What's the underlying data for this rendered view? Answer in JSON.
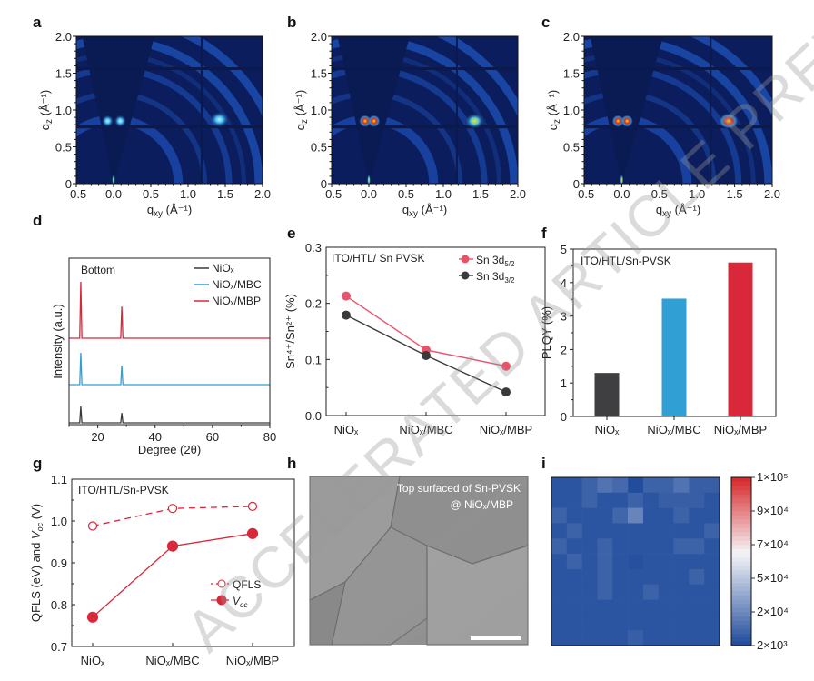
{
  "panel_labels": [
    "a",
    "b",
    "c",
    "d",
    "e",
    "f",
    "g",
    "h",
    "i"
  ],
  "watermark": "ACCELERATED ARTICLE PREVIEW",
  "colors": {
    "NiOx": "#3a3a3a",
    "NiOx_MBC": "#2f9fd4",
    "NiOx_MBP": "#d8283a",
    "giwaxs_bg": "#0b1d5c"
  },
  "chart_data": [
    {
      "panel": "a",
      "type": "heatmap",
      "xlabel": "q",
      "xlabel_sub": "xy",
      "xlabel_unit": " (Å⁻¹)",
      "ylabel": "q",
      "ylabel_sub": "z",
      "ylabel_unit": " (Å⁻¹)",
      "xlim": [
        -0.5,
        2.0
      ],
      "ylim": [
        0,
        2.0
      ],
      "xticks": [
        "-0.5",
        "0.0",
        "0.5",
        "1.0",
        "1.5",
        "2.0"
      ],
      "yticks": [
        "0",
        "0.5",
        "1.0",
        "1.5",
        "2.0"
      ],
      "spots": [
        {
          "qxy": -0.08,
          "qz": 0.85,
          "intensity": 0.55
        },
        {
          "qxy": 0.09,
          "qz": 0.85,
          "intensity": 0.55
        },
        {
          "qxy": 1.42,
          "qz": 0.87,
          "intensity": 0.45
        }
      ]
    },
    {
      "panel": "b",
      "type": "heatmap",
      "xlabel": "q",
      "xlabel_sub": "xy",
      "xlabel_unit": " (Å⁻¹)",
      "ylabel": "q",
      "ylabel_sub": "z",
      "ylabel_unit": " (Å⁻¹)",
      "xlim": [
        -0.5,
        2.0
      ],
      "ylim": [
        0,
        2.0
      ],
      "xticks": [
        "-0.5",
        "0.0",
        "0.5",
        "1.0",
        "1.5",
        "2.0"
      ],
      "yticks": [
        "0",
        "0.5",
        "1.0",
        "1.5",
        "2.0"
      ],
      "spots": [
        {
          "qxy": -0.05,
          "qz": 0.85,
          "intensity": 1.0
        },
        {
          "qxy": 0.07,
          "qz": 0.85,
          "intensity": 1.0
        },
        {
          "qxy": 1.42,
          "qz": 0.85,
          "intensity": 0.75
        }
      ]
    },
    {
      "panel": "c",
      "type": "heatmap",
      "xlabel": "q",
      "xlabel_sub": "xy",
      "xlabel_unit": " (Å⁻¹)",
      "ylabel": "q",
      "ylabel_sub": "z",
      "ylabel_unit": " (Å⁻¹)",
      "xlim": [
        -0.5,
        2.0
      ],
      "ylim": [
        0,
        2.0
      ],
      "xticks": [
        "-0.5",
        "0.0",
        "0.5",
        "1.0",
        "1.5",
        "2.0"
      ],
      "yticks": [
        "0",
        "0.5",
        "1.0",
        "1.5",
        "2.0"
      ],
      "spots": [
        {
          "qxy": -0.05,
          "qz": 0.85,
          "intensity": 1.0
        },
        {
          "qxy": 0.07,
          "qz": 0.85,
          "intensity": 1.0
        },
        {
          "qxy": 1.42,
          "qz": 0.85,
          "intensity": 1.0
        }
      ]
    },
    {
      "panel": "d",
      "type": "line",
      "xlabel": "Degree (2θ)",
      "ylabel": "Intensity (a.u.)",
      "annotation": "Bottom",
      "xlim": [
        10,
        80
      ],
      "xticks": [
        "20",
        "40",
        "60",
        "80"
      ],
      "legend": "top-right",
      "series": [
        {
          "name": "NiOₓ",
          "color": "#3a3a3a",
          "peaks": [
            {
              "x": 14.1,
              "h": 0.5
            },
            {
              "x": 28.4,
              "h": 0.3
            }
          ]
        },
        {
          "name": "NiOₓ/MBC",
          "color": "#2f9fd4",
          "peaks": [
            {
              "x": 14.1,
              "h": 0.7
            },
            {
              "x": 28.4,
              "h": 0.42
            }
          ]
        },
        {
          "name": "NiOₓ/MBP",
          "color": "#d8283a",
          "peaks": [
            {
              "x": 14.1,
              "h": 1.0
            },
            {
              "x": 28.4,
              "h": 0.56
            }
          ]
        }
      ]
    },
    {
      "panel": "e",
      "type": "line",
      "annotation": "ITO/HTL/ Sn PVSK",
      "ylabel": "Sn⁴⁺/Sn²⁺ (%)",
      "categories": [
        "NiOₓ",
        "NiOₓ/MBC",
        "NiOₓ/MBP"
      ],
      "ylim": [
        0,
        0.3
      ],
      "yticks": [
        "0.0",
        "0.1",
        "0.2",
        "0.3"
      ],
      "legend": "top-right",
      "series": [
        {
          "name": "Sn 3d",
          "name_sub": "5/2",
          "color": "#e8536a",
          "values": [
            0.213,
            0.117,
            0.088
          ]
        },
        {
          "name": "Sn 3d",
          "name_sub": "3/2",
          "color": "#3a3a3a",
          "values": [
            0.179,
            0.107,
            0.042
          ]
        }
      ]
    },
    {
      "panel": "f",
      "type": "bar",
      "annotation": "ITO/HTL/Sn-PVSK",
      "ylabel": "PLQY (%)",
      "categories": [
        "NiOₓ",
        "NiOₓ/MBC",
        "NiOₓ/MBP"
      ],
      "values": [
        1.3,
        3.52,
        4.6
      ],
      "colors": [
        "#3f3f42",
        "#2f9fd4",
        "#d8283a"
      ],
      "ylim": [
        0,
        5
      ],
      "yticks": [
        "0",
        "1",
        "2",
        "3",
        "4",
        "5"
      ]
    },
    {
      "panel": "g",
      "type": "line",
      "annotation": "ITO/HTL/Sn-PVSK",
      "ylabel_a": "QFLS (eV) and ",
      "ylabel_v": "V",
      "ylabel_sub": "oc",
      "ylabel_b": " (V)",
      "categories": [
        "NiOₓ",
        "NiOₓ/MBC",
        "NiOₓ/MBP"
      ],
      "ylim": [
        0.7,
        1.1
      ],
      "yticks": [
        "0.7",
        "0.8",
        "0.9",
        "1.0",
        "1.1"
      ],
      "legend": "center-right",
      "series": [
        {
          "name": "QFLS",
          "style": "dashed-open",
          "color": "#d8283a",
          "values": [
            0.988,
            1.03,
            1.035
          ]
        },
        {
          "name": "V",
          "name_sub": "oc",
          "style": "solid-filled",
          "color": "#d8283a",
          "values": [
            0.77,
            0.94,
            0.97
          ]
        }
      ]
    },
    {
      "panel": "h",
      "type": "image",
      "caption_line1": "Top surfaced of Sn-PVSK",
      "caption_line2": "@ NiOₓ/MBP"
    },
    {
      "panel": "i",
      "type": "heatmap",
      "colorbar_ticks": [
        "2×10³",
        "2×10⁴",
        "5×10⁴",
        "7×10⁴",
        "9×10⁴",
        "1×10⁵"
      ],
      "colorbar_values": [
        2000,
        20000,
        50000,
        70000,
        90000,
        100000
      ],
      "values": [
        [
          5000,
          5000,
          9000,
          14000,
          11000,
          3000,
          9000,
          9000,
          14000,
          8000,
          8000
        ],
        [
          5000,
          5000,
          9000,
          5000,
          5000,
          9000,
          5000,
          8000,
          8000,
          8000,
          5000
        ],
        [
          9000,
          5000,
          5000,
          5000,
          10000,
          19000,
          5000,
          5000,
          9000,
          5000,
          5000
        ],
        [
          5000,
          9000,
          5000,
          5000,
          5000,
          5000,
          5000,
          5000,
          5000,
          5000,
          9000
        ],
        [
          9000,
          5000,
          5000,
          9000,
          5000,
          5000,
          5000,
          5000,
          9000,
          9000,
          5000
        ],
        [
          5000,
          9000,
          5000,
          9000,
          5000,
          4000,
          5000,
          5000,
          5000,
          5000,
          5000
        ],
        [
          5000,
          5000,
          5000,
          9000,
          5000,
          5000,
          5000,
          5000,
          5000,
          9000,
          5000
        ],
        [
          5000,
          5000,
          5000,
          9000,
          5000,
          5000,
          9000,
          5000,
          5000,
          5000,
          5000
        ],
        [
          5000,
          5000,
          5000,
          5000,
          5000,
          5000,
          5000,
          5000,
          5000,
          5000,
          5000
        ],
        [
          5000,
          5000,
          5000,
          5000,
          5000,
          5000,
          5000,
          5000,
          5000,
          5000,
          5000
        ],
        [
          5000,
          5000,
          5000,
          5000,
          5000,
          8000,
          5000,
          5000,
          5000,
          5000,
          5000
        ]
      ]
    }
  ]
}
